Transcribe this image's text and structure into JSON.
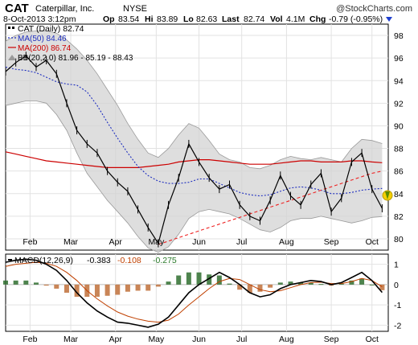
{
  "header": {
    "ticker": "CAT",
    "company": "Caterpillar, Inc.",
    "exchange": "NYSE",
    "watermark": "@StockCharts.com",
    "date": "8-Oct-2013 3:12pm",
    "open_label": "Op",
    "open": "83.54",
    "high_label": "Hi",
    "high": "83.89",
    "low_label": "Lo",
    "low": "82.63",
    "last_label": "Last",
    "last": "82.74",
    "vol_label": "Vol",
    "vol": "4.1M",
    "chg_label": "Chg",
    "chg": "-0.79 (-0.95%)",
    "down_color": "#1f3fcf"
  },
  "legend": {
    "price": "CAT (Daily) 82.74",
    "ma50": "MA(50) 84.46",
    "ma200": "MA(200) 86.74",
    "bb": "BB(20,2.0) 81.96 - 85.19 - 88.43"
  },
  "macd_legend": {
    "prefix": "MACD(12,26,9)",
    "v1": "-0.383",
    "v2": "-0.108",
    "v3": "-0.275"
  },
  "chart_data": [
    {
      "type": "line",
      "ylim": [
        79,
        99
      ],
      "yticks": [
        80,
        82,
        84,
        86,
        88,
        90,
        92,
        94,
        96,
        98
      ],
      "x": [
        0,
        5,
        10,
        15,
        20,
        25,
        30,
        35,
        40,
        45,
        50,
        55,
        60,
        65,
        70,
        75,
        80,
        85,
        90,
        95,
        100,
        105,
        110,
        115,
        120,
        125,
        130,
        135,
        140,
        145,
        150,
        155,
        160,
        165,
        170,
        175,
        180,
        185
      ],
      "x_ticks": [
        {
          "label": "Feb",
          "x": 12
        },
        {
          "label": "Mar",
          "x": 32
        },
        {
          "label": "Apr",
          "x": 54
        },
        {
          "label": "May",
          "x": 74
        },
        {
          "label": "Jun",
          "x": 95
        },
        {
          "label": "Jul",
          "x": 116
        },
        {
          "label": "Aug",
          "x": 138
        },
        {
          "label": "Sep",
          "x": 160
        },
        {
          "label": "Oct",
          "x": 180
        }
      ],
      "x_range": [
        0,
        188
      ],
      "series": [
        {
          "name": "CAT (Daily)",
          "color": "#000000",
          "values": [
            94.8,
            95.6,
            96.2,
            95.2,
            95.8,
            94.6,
            92.0,
            89.6,
            88.4,
            87.6,
            86.0,
            85.0,
            84.2,
            82.6,
            81.0,
            79.6,
            83.0,
            85.4,
            88.4,
            86.8,
            85.4,
            84.4,
            84.8,
            83.0,
            82.0,
            81.6,
            83.4,
            85.6,
            83.8,
            83.0,
            84.8,
            85.8,
            82.4,
            83.6,
            86.8,
            87.6,
            84.4,
            82.7
          ]
        },
        {
          "name": "MA(50)",
          "color": "#1f2fbf",
          "values": [
            95.2,
            95.0,
            94.9,
            94.7,
            94.3,
            93.9,
            93.7,
            93.6,
            93.0,
            91.8,
            90.3,
            88.9,
            87.6,
            86.4,
            85.6,
            85.1,
            84.9,
            84.9,
            85.0,
            85.3,
            85.3,
            84.9,
            84.5,
            84.1,
            83.9,
            83.8,
            83.9,
            84.2,
            84.5,
            84.6,
            84.5,
            84.3,
            84.0,
            84.0,
            84.1,
            84.3,
            84.4,
            84.46
          ]
        },
        {
          "name": "MA(200)",
          "color": "#cc0000",
          "values": [
            87.7,
            87.5,
            87.3,
            87.1,
            86.9,
            86.8,
            86.7,
            86.6,
            86.5,
            86.4,
            86.3,
            86.3,
            86.3,
            86.3,
            86.4,
            86.5,
            86.6,
            86.8,
            86.9,
            87.0,
            87.0,
            86.9,
            86.8,
            86.7,
            86.6,
            86.6,
            86.6,
            86.7,
            86.8,
            86.9,
            86.9,
            86.8,
            86.8,
            86.8,
            86.9,
            86.9,
            86.8,
            86.74
          ]
        },
        {
          "name": "BB(20,2.0) upper",
          "color": "#999999",
          "values": [
            97.5,
            98.0,
            98.3,
            98.4,
            98.4,
            98.2,
            97.6,
            96.8,
            95.8,
            94.6,
            93.2,
            91.8,
            90.2,
            88.8,
            87.6,
            87.2,
            88.0,
            89.2,
            90.2,
            89.8,
            88.7,
            87.5,
            87.0,
            86.8,
            86.3,
            86.2,
            86.5,
            87.0,
            87.3,
            87.1,
            87.0,
            87.2,
            87.0,
            86.8,
            88.0,
            88.8,
            88.7,
            88.43
          ]
        },
        {
          "name": "BB(20,2.0) lower",
          "color": "#999999",
          "values": [
            91.8,
            92.0,
            92.2,
            92.2,
            92.0,
            91.0,
            89.6,
            87.6,
            85.8,
            84.6,
            83.4,
            82.4,
            81.4,
            80.2,
            79.2,
            78.8,
            79.3,
            80.4,
            81.8,
            82.4,
            82.6,
            82.4,
            82.2,
            81.8,
            81.3,
            80.8,
            80.6,
            81.0,
            81.6,
            81.8,
            81.8,
            82.0,
            81.8,
            81.6,
            81.4,
            81.6,
            81.9,
            81.96
          ]
        },
        {
          "name": "Trendline",
          "color": "#ee2222",
          "values": [
            null,
            null,
            null,
            null,
            null,
            null,
            null,
            null,
            null,
            null,
            null,
            null,
            null,
            null,
            null,
            79.5,
            79.8,
            80.1,
            80.4,
            80.7,
            81.0,
            81.3,
            81.6,
            81.9,
            82.2,
            82.5,
            82.8,
            83.1,
            83.4,
            83.7,
            84.0,
            84.3,
            84.6,
            84.9,
            85.2,
            85.5,
            85.8,
            86.0
          ]
        }
      ]
    },
    {
      "type": "line",
      "ylim": [
        -2.3,
        1.5
      ],
      "yticks": [
        1,
        0,
        -1,
        -2
      ],
      "x": [
        0,
        5,
        10,
        15,
        20,
        25,
        30,
        35,
        40,
        45,
        50,
        55,
        60,
        65,
        70,
        75,
        80,
        85,
        90,
        95,
        100,
        105,
        110,
        115,
        120,
        125,
        130,
        135,
        140,
        145,
        150,
        155,
        160,
        165,
        170,
        175,
        180,
        185
      ],
      "x_range": [
        0,
        188
      ],
      "series": [
        {
          "name": "MACD(12,26,9)",
          "color": "#000000",
          "values": [
            1.1,
            1.2,
            1.25,
            1.2,
            1.0,
            0.7,
            0.2,
            -0.4,
            -0.9,
            -1.3,
            -1.6,
            -1.85,
            -1.9,
            -2.0,
            -2.1,
            -1.95,
            -1.6,
            -1.0,
            -0.4,
            0.0,
            0.3,
            0.6,
            0.35,
            0.0,
            -0.4,
            -0.6,
            -0.5,
            -0.2,
            0.0,
            0.1,
            0.2,
            0.15,
            0.0,
            0.1,
            0.35,
            0.6,
            0.2,
            -0.383
          ]
        },
        {
          "name": "Signal",
          "color": "#c04000",
          "values": [
            0.9,
            1.0,
            1.05,
            1.1,
            1.05,
            0.9,
            0.6,
            0.2,
            -0.3,
            -0.7,
            -1.05,
            -1.35,
            -1.55,
            -1.7,
            -1.8,
            -1.85,
            -1.75,
            -1.45,
            -1.0,
            -0.6,
            -0.2,
            0.15,
            0.3,
            0.25,
            0.0,
            -0.25,
            -0.35,
            -0.3,
            -0.15,
            0.0,
            0.1,
            0.12,
            0.05,
            0.05,
            0.15,
            0.3,
            0.2,
            -0.108
          ]
        }
      ]
    }
  ]
}
